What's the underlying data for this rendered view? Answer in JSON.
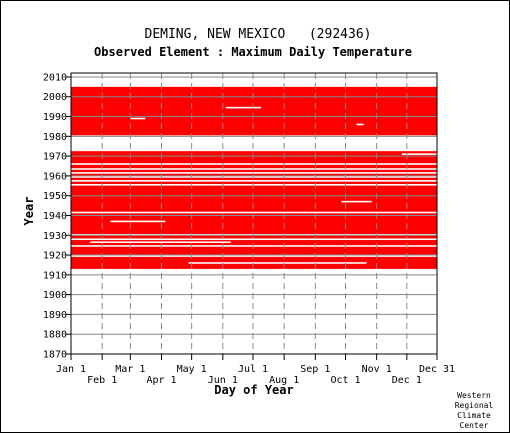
{
  "chart_data": {
    "type": "heatmap",
    "title": "DEMING, NEW MEXICO   (292436)",
    "subtitle": "Observed Element : Maximum Daily Temperature",
    "xlabel": "Day of Year",
    "ylabel": "Year",
    "x_ticks_top_row": [
      "Jan 1",
      "Mar 1",
      "May 1",
      "Jul 1",
      "Sep 1",
      "Nov 1",
      "Dec 31"
    ],
    "x_ticks_bottom_row": [
      "Feb 1",
      "Apr 1",
      "Jun 1",
      "Aug 1",
      "Oct 1",
      "Dec 1"
    ],
    "x_tick_days": [
      1,
      32,
      60,
      91,
      121,
      152,
      182,
      213,
      244,
      274,
      305,
      335,
      365
    ],
    "y_ticks": [
      "2010",
      "2000",
      "1990",
      "1980",
      "1970",
      "1960",
      "1950",
      "1940",
      "1930",
      "1920",
      "1910",
      "1900",
      "1890",
      "1880",
      "1870"
    ],
    "ylim": [
      1870,
      2012
    ],
    "xlim": [
      1,
      365
    ],
    "grid": true,
    "data_color": "#ff0000",
    "data_meaning": "red = day with observed value",
    "data_blocks": [
      {
        "years": [
          1913,
          1972.5
        ],
        "days": [
          1,
          365
        ]
      },
      {
        "years": [
          1980.5,
          2005
        ],
        "days": [
          1,
          365
        ]
      }
    ],
    "missing_bands": [
      {
        "year": 1919.5,
        "days": [
          0,
          365
        ]
      },
      {
        "year": 1924.6,
        "days": [
          0,
          365
        ]
      },
      {
        "year": 1928,
        "days": [
          0,
          365
        ]
      },
      {
        "year": 1930.2,
        "days": [
          0,
          365
        ]
      },
      {
        "year": 1941.5,
        "days": [
          0,
          365
        ]
      },
      {
        "year": 1955.5,
        "days": [
          0,
          365
        ]
      },
      {
        "year": 1957.5,
        "days": [
          0,
          365
        ]
      },
      {
        "year": 1959.5,
        "days": [
          0,
          365
        ]
      },
      {
        "year": 1961.5,
        "days": [
          0,
          365
        ]
      },
      {
        "year": 1963.5,
        "days": [
          0,
          365
        ]
      },
      {
        "year": 1966,
        "days": [
          0,
          365
        ]
      },
      {
        "year": 1916,
        "days": [
          118,
          295
        ]
      },
      {
        "year": 1926.5,
        "days": [
          20,
          160
        ]
      },
      {
        "year": 1937,
        "days": [
          40,
          95
        ]
      },
      {
        "year": 1947,
        "days": [
          270,
          300
        ]
      },
      {
        "year": 1971,
        "days": [
          330,
          365
        ]
      },
      {
        "year": 1994.5,
        "days": [
          155,
          190
        ]
      },
      {
        "year": 1989,
        "days": [
          60,
          75
        ]
      },
      {
        "year": 1986,
        "days": [
          285,
          292
        ]
      }
    ],
    "credit": [
      "Western",
      "Regional",
      "Climate",
      "Center"
    ]
  }
}
